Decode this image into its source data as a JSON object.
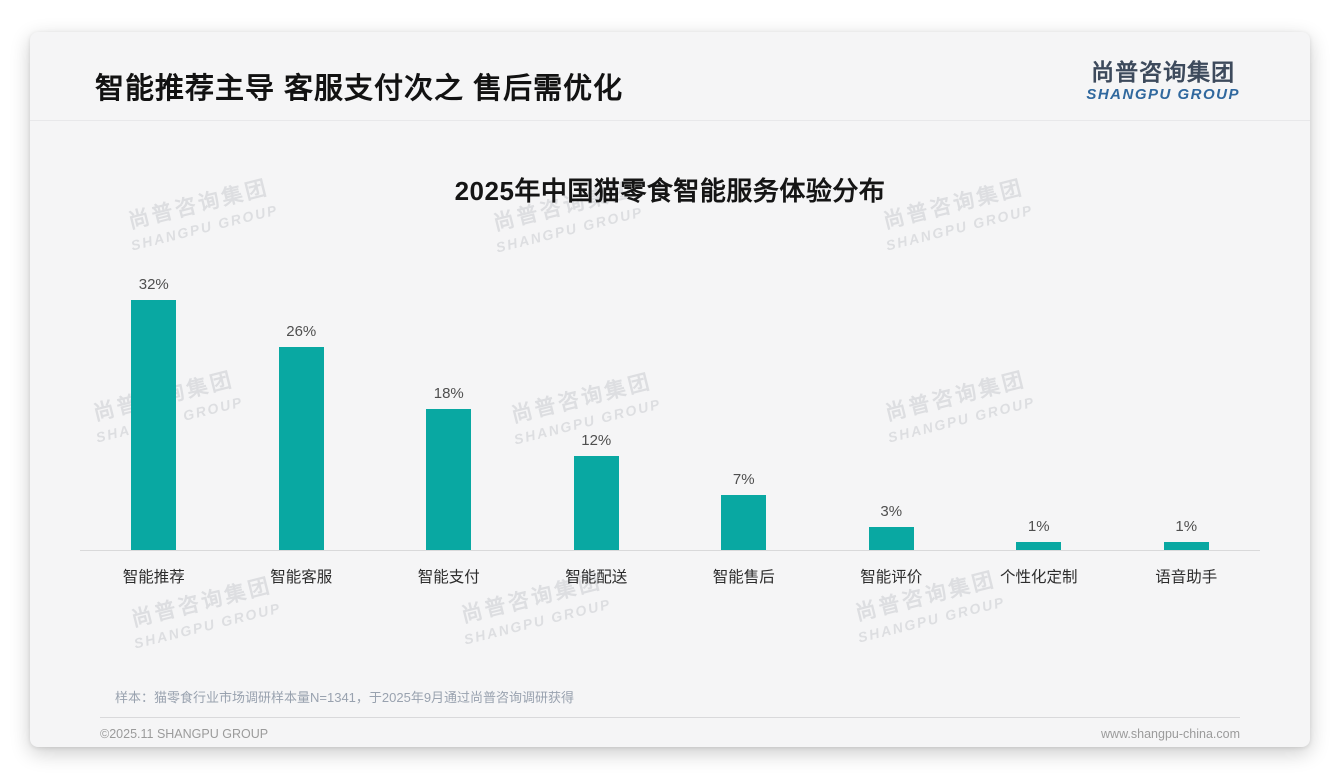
{
  "page": {
    "title": "智能推荐主导 客服支付次之 售后需优化",
    "logo": {
      "cn": "尚普咨询集团",
      "en": "SHANGPU GROUP"
    },
    "watermark": {
      "cn": "尚普咨询集团",
      "en": "SHANGPU GROUP"
    },
    "note": "样本：猫零食行业市场调研样本量N=1341，于2025年9月通过尚普咨询调研获得",
    "footer": {
      "left": "©2025.11 SHANGPU GROUP",
      "right": "www.shangpu-china.com"
    }
  },
  "chart_data": {
    "type": "bar",
    "title": "2025年中国猫零食智能服务体验分布",
    "categories": [
      "智能推荐",
      "智能客服",
      "智能支付",
      "智能配送",
      "智能售后",
      "智能评价",
      "个性化定制",
      "语音助手"
    ],
    "values": [
      32,
      26,
      18,
      12,
      7,
      3,
      1,
      1
    ],
    "value_labels": [
      "32%",
      "26%",
      "18%",
      "12%",
      "7%",
      "3%",
      "1%",
      "1%"
    ],
    "unit": "%",
    "ylim": [
      0,
      35
    ],
    "grid": false,
    "legend": "none",
    "bar_color": "#09a8a2",
    "axis_line_color": "#d9d9da"
  }
}
